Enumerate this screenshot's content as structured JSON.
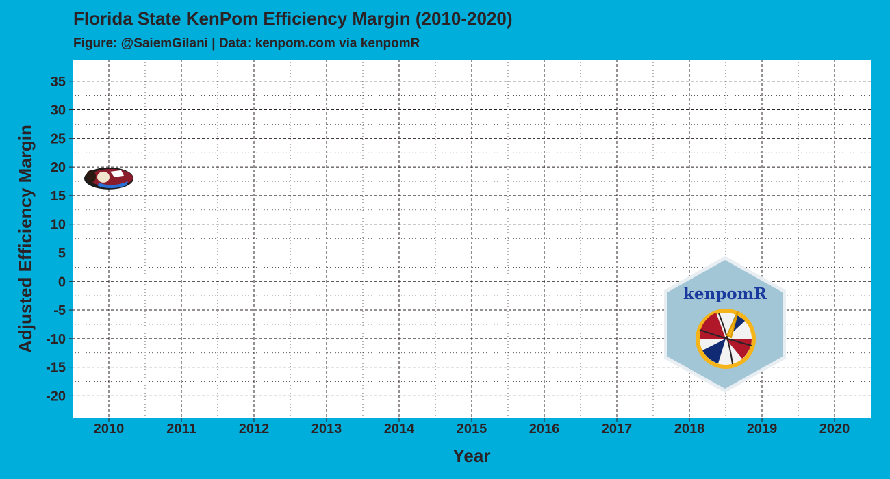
{
  "chart_data": {
    "type": "scatter",
    "title": "Florida State KenPom Efficiency Margin (2010-2020)",
    "subtitle": "Figure: @SaiemGilani | Data: kenpom.com via kenpomR",
    "xlabel": "Year",
    "ylabel": "Adjusted Efficiency Margin",
    "x_ticks": [
      2010,
      2011,
      2012,
      2013,
      2014,
      2015,
      2016,
      2017,
      2018,
      2019,
      2020
    ],
    "y_ticks": [
      -20,
      -15,
      -10,
      -5,
      0,
      5,
      10,
      15,
      20,
      25,
      30,
      35
    ],
    "xlim": [
      2009.5,
      2020.5
    ],
    "ylim": [
      -23.9,
      38.8
    ],
    "grid": true,
    "grid_style": "dashed",
    "series": [
      {
        "marker": "florida-state-logo",
        "points": [
          {
            "x": 2010,
            "y": 18
          }
        ]
      }
    ],
    "watermark": {
      "text": "kenpomR",
      "placement": "bottom-right"
    },
    "colors": {
      "background": "#00aedb",
      "panel": "#ffffff",
      "text": "#2b2226",
      "grid": "#2b2226"
    }
  }
}
